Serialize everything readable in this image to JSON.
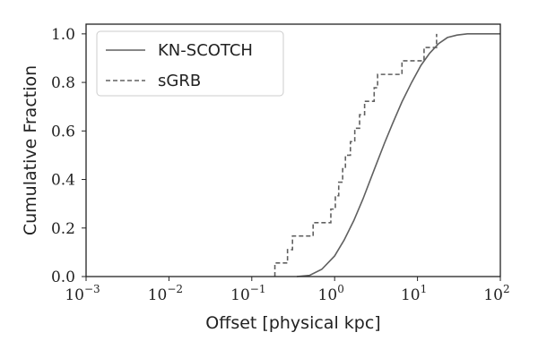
{
  "chart_data": {
    "type": "line",
    "xlabel": "Offset [physical kpc]",
    "ylabel": "Cumulative Fraction",
    "x_scale": "log",
    "xlim": [
      0.001,
      100
    ],
    "ylim": [
      0,
      1.04
    ],
    "x_ticks": [
      {
        "value": 0.001,
        "base": "10",
        "exp": "−3"
      },
      {
        "value": 0.01,
        "base": "10",
        "exp": "−2"
      },
      {
        "value": 0.1,
        "base": "10",
        "exp": "−1"
      },
      {
        "value": 1,
        "base": "10",
        "exp": "0"
      },
      {
        "value": 10,
        "base": "10",
        "exp": "1"
      },
      {
        "value": 100,
        "base": "10",
        "exp": "2"
      }
    ],
    "y_ticks": [
      {
        "value": 0.0,
        "label": "0.0"
      },
      {
        "value": 0.2,
        "label": "0.2"
      },
      {
        "value": 0.4,
        "label": "0.4"
      },
      {
        "value": 0.6,
        "label": "0.6"
      },
      {
        "value": 0.8,
        "label": "0.8"
      },
      {
        "value": 1.0,
        "label": "1.0"
      }
    ],
    "grid": false,
    "legend_position": "top-left",
    "series": [
      {
        "name": "KN-SCOTCH",
        "style": "solid",
        "color": "#606060",
        "x": [
          0.35,
          0.5,
          0.7,
          1.0,
          1.3,
          1.7,
          2.2,
          3.0,
          4.0,
          5.0,
          6.5,
          8.5,
          11,
          14,
          18,
          23,
          30,
          40,
          60,
          100
        ],
        "y": [
          0.0,
          0.005,
          0.03,
          0.085,
          0.15,
          0.23,
          0.32,
          0.44,
          0.55,
          0.63,
          0.72,
          0.8,
          0.87,
          0.92,
          0.96,
          0.985,
          0.995,
          1.0,
          1.0,
          1.0
        ]
      },
      {
        "name": "sGRB",
        "style": "dashed",
        "color": "#606060",
        "x": [
          0.19,
          0.19,
          0.27,
          0.27,
          0.31,
          0.31,
          0.38,
          0.38,
          0.55,
          0.55,
          0.7,
          0.7,
          0.9,
          0.9,
          1.02,
          1.02,
          1.12,
          1.12,
          1.25,
          1.25,
          1.35,
          1.35,
          1.55,
          1.55,
          1.75,
          1.75,
          2.0,
          2.0,
          2.3,
          2.3,
          3.0,
          3.0,
          3.3,
          3.3,
          4.5,
          4.5,
          6.5,
          6.5,
          9.5,
          9.5,
          12,
          12,
          17,
          17
        ],
        "y": [
          0.0,
          0.056,
          0.056,
          0.111,
          0.111,
          0.167,
          0.167,
          0.167,
          0.167,
          0.222,
          0.222,
          0.222,
          0.222,
          0.278,
          0.278,
          0.333,
          0.333,
          0.389,
          0.389,
          0.444,
          0.444,
          0.5,
          0.5,
          0.556,
          0.556,
          0.611,
          0.611,
          0.667,
          0.667,
          0.722,
          0.722,
          0.778,
          0.778,
          0.833,
          0.833,
          0.833,
          0.833,
          0.889,
          0.889,
          0.889,
          0.889,
          0.944,
          0.944,
          1.0
        ]
      }
    ]
  }
}
